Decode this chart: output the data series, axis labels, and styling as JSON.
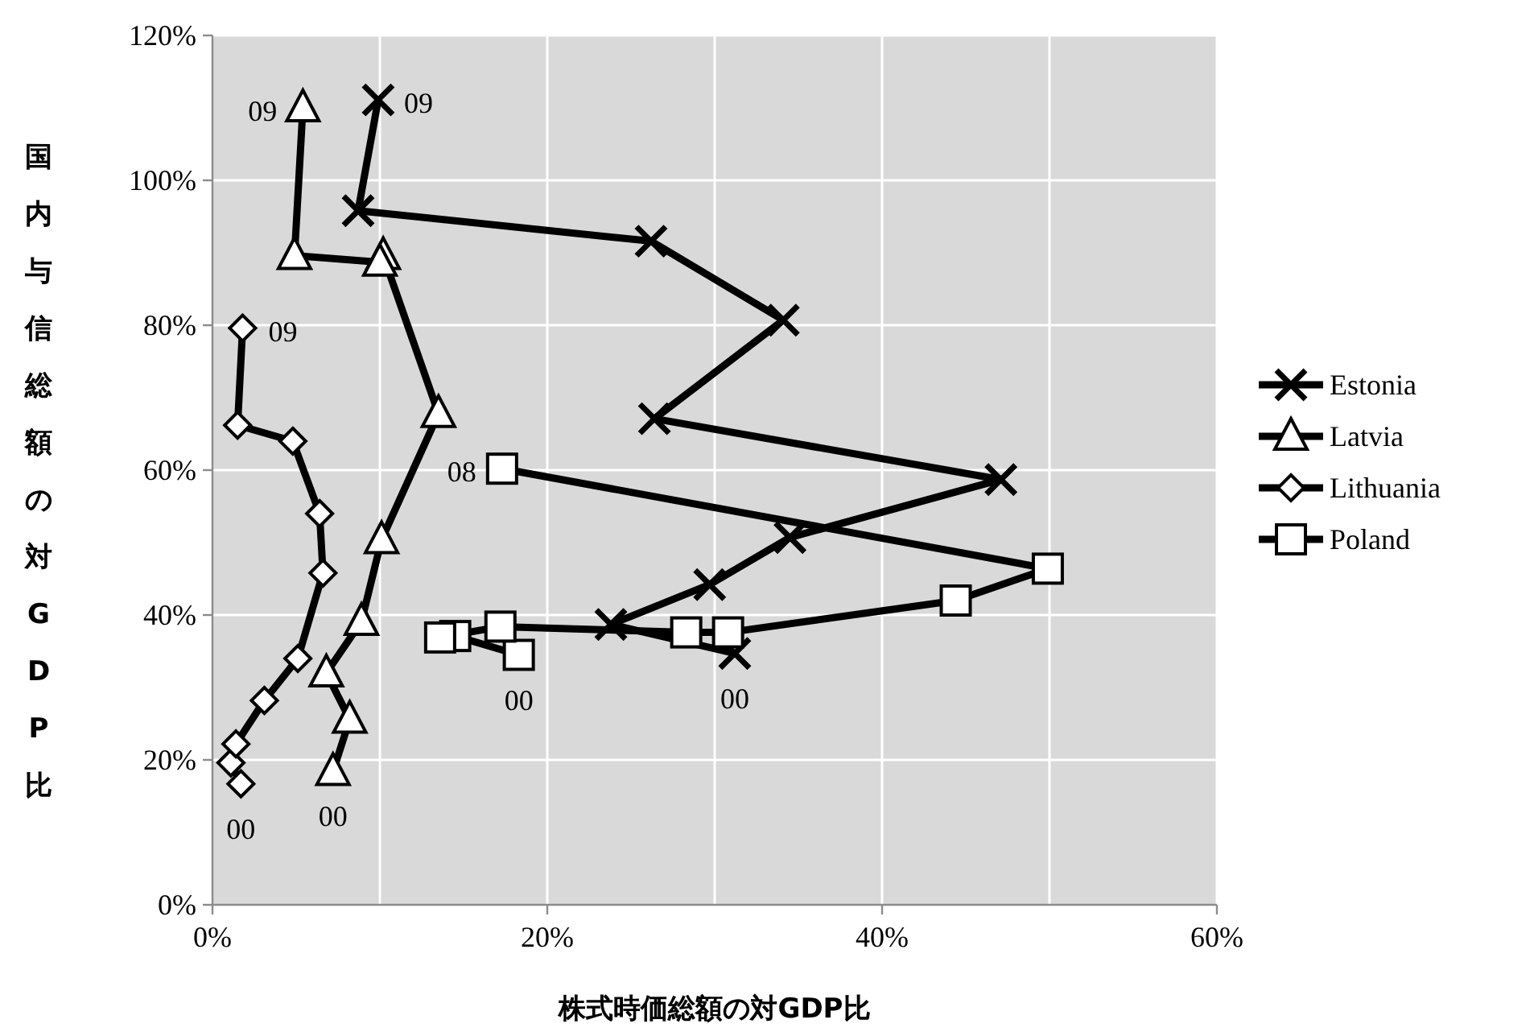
{
  "chart_data": {
    "type": "line",
    "xlabel": "株式時価総額の対GDP比",
    "ylabel": "国内与信総額の対GDP比",
    "xlim": [
      0,
      60
    ],
    "ylim": [
      0,
      120
    ],
    "xticks": [
      {
        "value": 0,
        "label": "0%"
      },
      {
        "value": 10,
        "label": null
      },
      {
        "value": 20,
        "label": "20%"
      },
      {
        "value": 30,
        "label": null
      },
      {
        "value": 40,
        "label": "40%"
      },
      {
        "value": 50,
        "label": null
      },
      {
        "value": 60,
        "label": "60%"
      }
    ],
    "yticks": [
      {
        "value": 0,
        "label": "0%"
      },
      {
        "value": 20,
        "label": "20%"
      },
      {
        "value": 40,
        "label": "40%"
      },
      {
        "value": 60,
        "label": "60%"
      },
      {
        "value": 80,
        "label": "80%"
      },
      {
        "value": 100,
        "label": "100%"
      },
      {
        "value": 120,
        "label": "120%"
      }
    ],
    "grid": true,
    "legend": "right",
    "line_style": "solid",
    "series": [
      {
        "name": "Estonia",
        "color": "#000000",
        "marker": "cross",
        "x": [
          31.2,
          23.8,
          29.7,
          34.5,
          47.1,
          26.4,
          34.1,
          26.2,
          8.7,
          9.9
        ],
        "values": [
          34.7,
          38.7,
          44.2,
          50.7,
          58.7,
          67.1,
          80.7,
          91.6,
          95.8,
          111.1
        ]
      },
      {
        "name": "Latvia",
        "color": "#000000",
        "marker": "triangle",
        "x": [
          7.2,
          8.2,
          6.8,
          8.9,
          10.1,
          13.5,
          10.2,
          10.0,
          4.9,
          5.4
        ],
        "values": [
          18.4,
          25.6,
          32.0,
          39.1,
          50.4,
          67.8,
          89.6,
          88.7,
          89.6,
          110.0
        ]
      },
      {
        "name": "Lithuania",
        "color": "#000000",
        "marker": "diamond",
        "x": [
          1.7,
          1.1,
          1.4,
          3.1,
          5.1,
          6.6,
          6.4,
          4.8,
          1.5,
          1.8
        ],
        "values": [
          16.7,
          19.6,
          22.2,
          28.2,
          34.0,
          45.8,
          54.0,
          64.0,
          66.2,
          79.6
        ]
      },
      {
        "name": "Poland",
        "color": "#000000",
        "marker": "square",
        "x": [
          18.3,
          14.5,
          13.6,
          17.2,
          28.3,
          30.8,
          44.4,
          49.9,
          17.3
        ],
        "values": [
          34.5,
          37.1,
          36.9,
          38.4,
          37.6,
          37.6,
          42.0,
          46.4,
          60.2
        ]
      }
    ],
    "annotations": [
      {
        "text": "09",
        "x": 9.9,
        "y": 111.1
      },
      {
        "text": "09",
        "x": 5.4,
        "y": 110.0
      },
      {
        "text": "09",
        "x": 1.8,
        "y": 79.6
      },
      {
        "text": "08",
        "x": 17.3,
        "y": 60.2
      },
      {
        "text": "00",
        "x": 31.2,
        "y": 34.7
      },
      {
        "text": "00",
        "x": 18.3,
        "y": 34.5
      },
      {
        "text": "00",
        "x": 7.2,
        "y": 18.4
      },
      {
        "text": "00",
        "x": 1.7,
        "y": 16.7
      }
    ]
  }
}
